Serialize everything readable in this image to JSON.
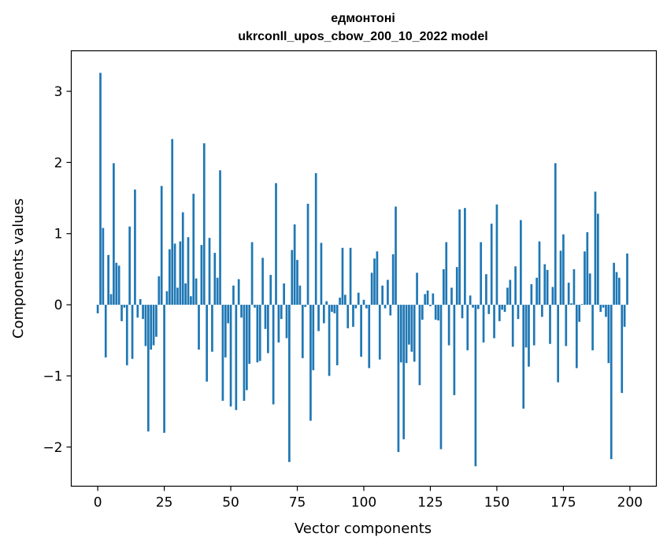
{
  "chart_data": {
    "type": "bar",
    "title": "едмонтоні",
    "subtitle": "ukrconll_upos_cbow_200_10_2022 model",
    "xlabel": "Vector components",
    "ylabel": "Components values",
    "xlim": [
      -9.95,
      209.95
    ],
    "ylim": [
      -2.55,
      3.57
    ],
    "xticks": [
      0,
      25,
      50,
      75,
      100,
      125,
      150,
      175,
      200
    ],
    "xtick_labels": [
      "0",
      "25",
      "50",
      "75",
      "100",
      "125",
      "150",
      "175",
      "200"
    ],
    "yticks": [
      -2,
      -1,
      0,
      1,
      2,
      3
    ],
    "ytick_labels": [
      "−2",
      "−1",
      "0",
      "1",
      "2",
      "3"
    ],
    "grid": false,
    "color": "#1f77b4",
    "values": [
      -0.12,
      3.26,
      1.08,
      -0.74,
      0.7,
      0.15,
      1.99,
      0.59,
      0.55,
      -0.23,
      -0.04,
      -0.85,
      1.1,
      -0.76,
      1.62,
      -0.18,
      0.08,
      -0.2,
      -0.58,
      -1.78,
      -0.63,
      -0.57,
      -0.45,
      0.4,
      1.67,
      -1.8,
      0.19,
      0.78,
      2.33,
      0.86,
      0.24,
      0.89,
      1.3,
      0.3,
      0.95,
      0.12,
      1.56,
      0.37,
      -0.63,
      0.84,
      2.27,
      -1.08,
      0.94,
      -0.66,
      0.73,
      0.38,
      1.89,
      -1.35,
      -0.74,
      -0.26,
      -1.43,
      0.27,
      -1.48,
      0.36,
      -0.18,
      -1.35,
      -1.2,
      -0.83,
      0.88,
      -0.04,
      -0.81,
      -0.79,
      0.66,
      -0.34,
      -0.68,
      0.42,
      -1.4,
      1.71,
      -0.53,
      -0.2,
      0.3,
      -0.47,
      -2.21,
      0.77,
      1.13,
      0.63,
      0.27,
      -0.75,
      -0.03,
      1.42,
      -1.63,
      -0.92,
      1.85,
      -0.37,
      0.87,
      -0.26,
      0.05,
      -1.0,
      -0.1,
      -0.12,
      -0.85,
      0.1,
      0.8,
      0.14,
      -0.33,
      0.8,
      -0.31,
      -0.05,
      0.17,
      -0.73,
      0.07,
      -0.05,
      -0.89,
      0.45,
      0.65,
      0.75,
      -0.77,
      0.27,
      -0.05,
      0.35,
      -0.15,
      0.71,
      1.38,
      -2.07,
      -0.81,
      -1.89,
      -0.82,
      -0.56,
      -0.66,
      -0.8,
      0.45,
      -1.13,
      -0.21,
      0.15,
      0.2,
      -0.02,
      0.16,
      -0.21,
      -0.22,
      -2.03,
      0.5,
      0.88,
      -0.57,
      0.24,
      -1.27,
      0.53,
      1.34,
      -0.19,
      1.36,
      -0.64,
      0.13,
      -0.04,
      -2.27,
      -0.06,
      0.88,
      -0.53,
      0.43,
      -0.13,
      1.14,
      -0.47,
      1.41,
      -0.23,
      -0.07,
      -0.1,
      0.24,
      0.35,
      -0.59,
      0.54,
      -0.2,
      1.19,
      -1.46,
      -0.6,
      -0.87,
      0.29,
      -0.57,
      0.38,
      0.89,
      -0.17,
      0.57,
      0.49,
      -0.55,
      0.25,
      1.99,
      -1.09,
      0.76,
      0.99,
      -0.58,
      0.31,
      0.02,
      0.5,
      -0.89,
      -0.24,
      0.01,
      0.75,
      1.02,
      0.44,
      -0.64,
      1.59,
      1.28,
      -0.1,
      -0.04,
      -0.17,
      -0.82,
      -2.17,
      0.59,
      0.46,
      0.38,
      -1.24,
      -0.31,
      0.72
    ]
  }
}
